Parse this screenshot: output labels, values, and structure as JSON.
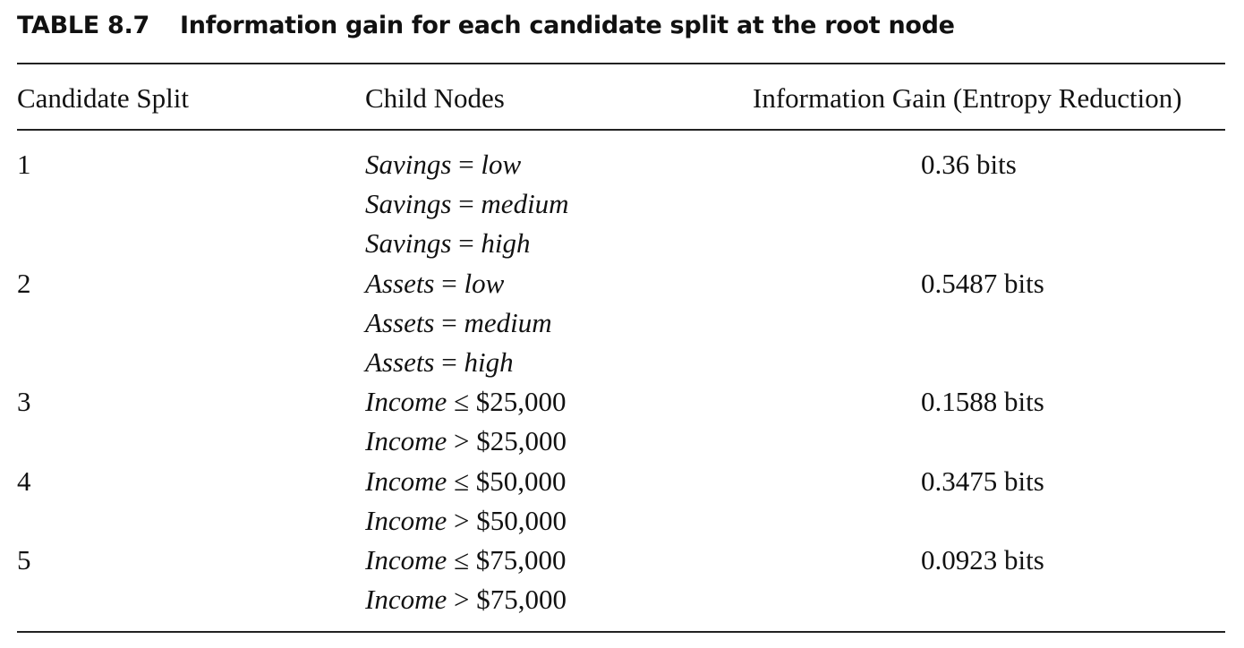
{
  "table": {
    "label": "TABLE 8.7",
    "title": "Information gain for each candidate split at the root node",
    "headers": {
      "split": "Candidate Split",
      "children": "Child Nodes",
      "gain": "Information Gain (Entropy Reduction)"
    },
    "rows": [
      {
        "split": "1",
        "gain": "0.36 bits",
        "children": [
          {
            "var": "Savings",
            "op": "=",
            "val": "low",
            "val_italic": true
          },
          {
            "var": "Savings",
            "op": "=",
            "val": "medium",
            "val_italic": true
          },
          {
            "var": "Savings",
            "op": "=",
            "val": "high",
            "val_italic": true
          }
        ]
      },
      {
        "split": "2",
        "gain": "0.5487 bits",
        "children": [
          {
            "var": "Assets",
            "op": "=",
            "val": "low",
            "val_italic": true
          },
          {
            "var": "Assets",
            "op": "=",
            "val": "medium",
            "val_italic": true
          },
          {
            "var": "Assets",
            "op": "=",
            "val": "high",
            "val_italic": true
          }
        ]
      },
      {
        "split": "3",
        "gain": "0.1588 bits",
        "children": [
          {
            "var": "Income",
            "op": "≤",
            "val": "$25,000",
            "val_italic": false
          },
          {
            "var": "Income",
            "op": ">",
            "val": "$25,000",
            "val_italic": false
          }
        ]
      },
      {
        "split": "4",
        "gain": "0.3475 bits",
        "children": [
          {
            "var": "Income",
            "op": "≤",
            "val": "$50,000",
            "val_italic": false
          },
          {
            "var": "Income",
            "op": ">",
            "val": "$50,000",
            "val_italic": false
          }
        ]
      },
      {
        "split": "5",
        "gain": "0.0923 bits",
        "children": [
          {
            "var": "Income",
            "op": "≤",
            "val": "$75,000",
            "val_italic": false
          },
          {
            "var": "Income",
            "op": ">",
            "val": "$75,000",
            "val_italic": false
          }
        ]
      }
    ]
  }
}
